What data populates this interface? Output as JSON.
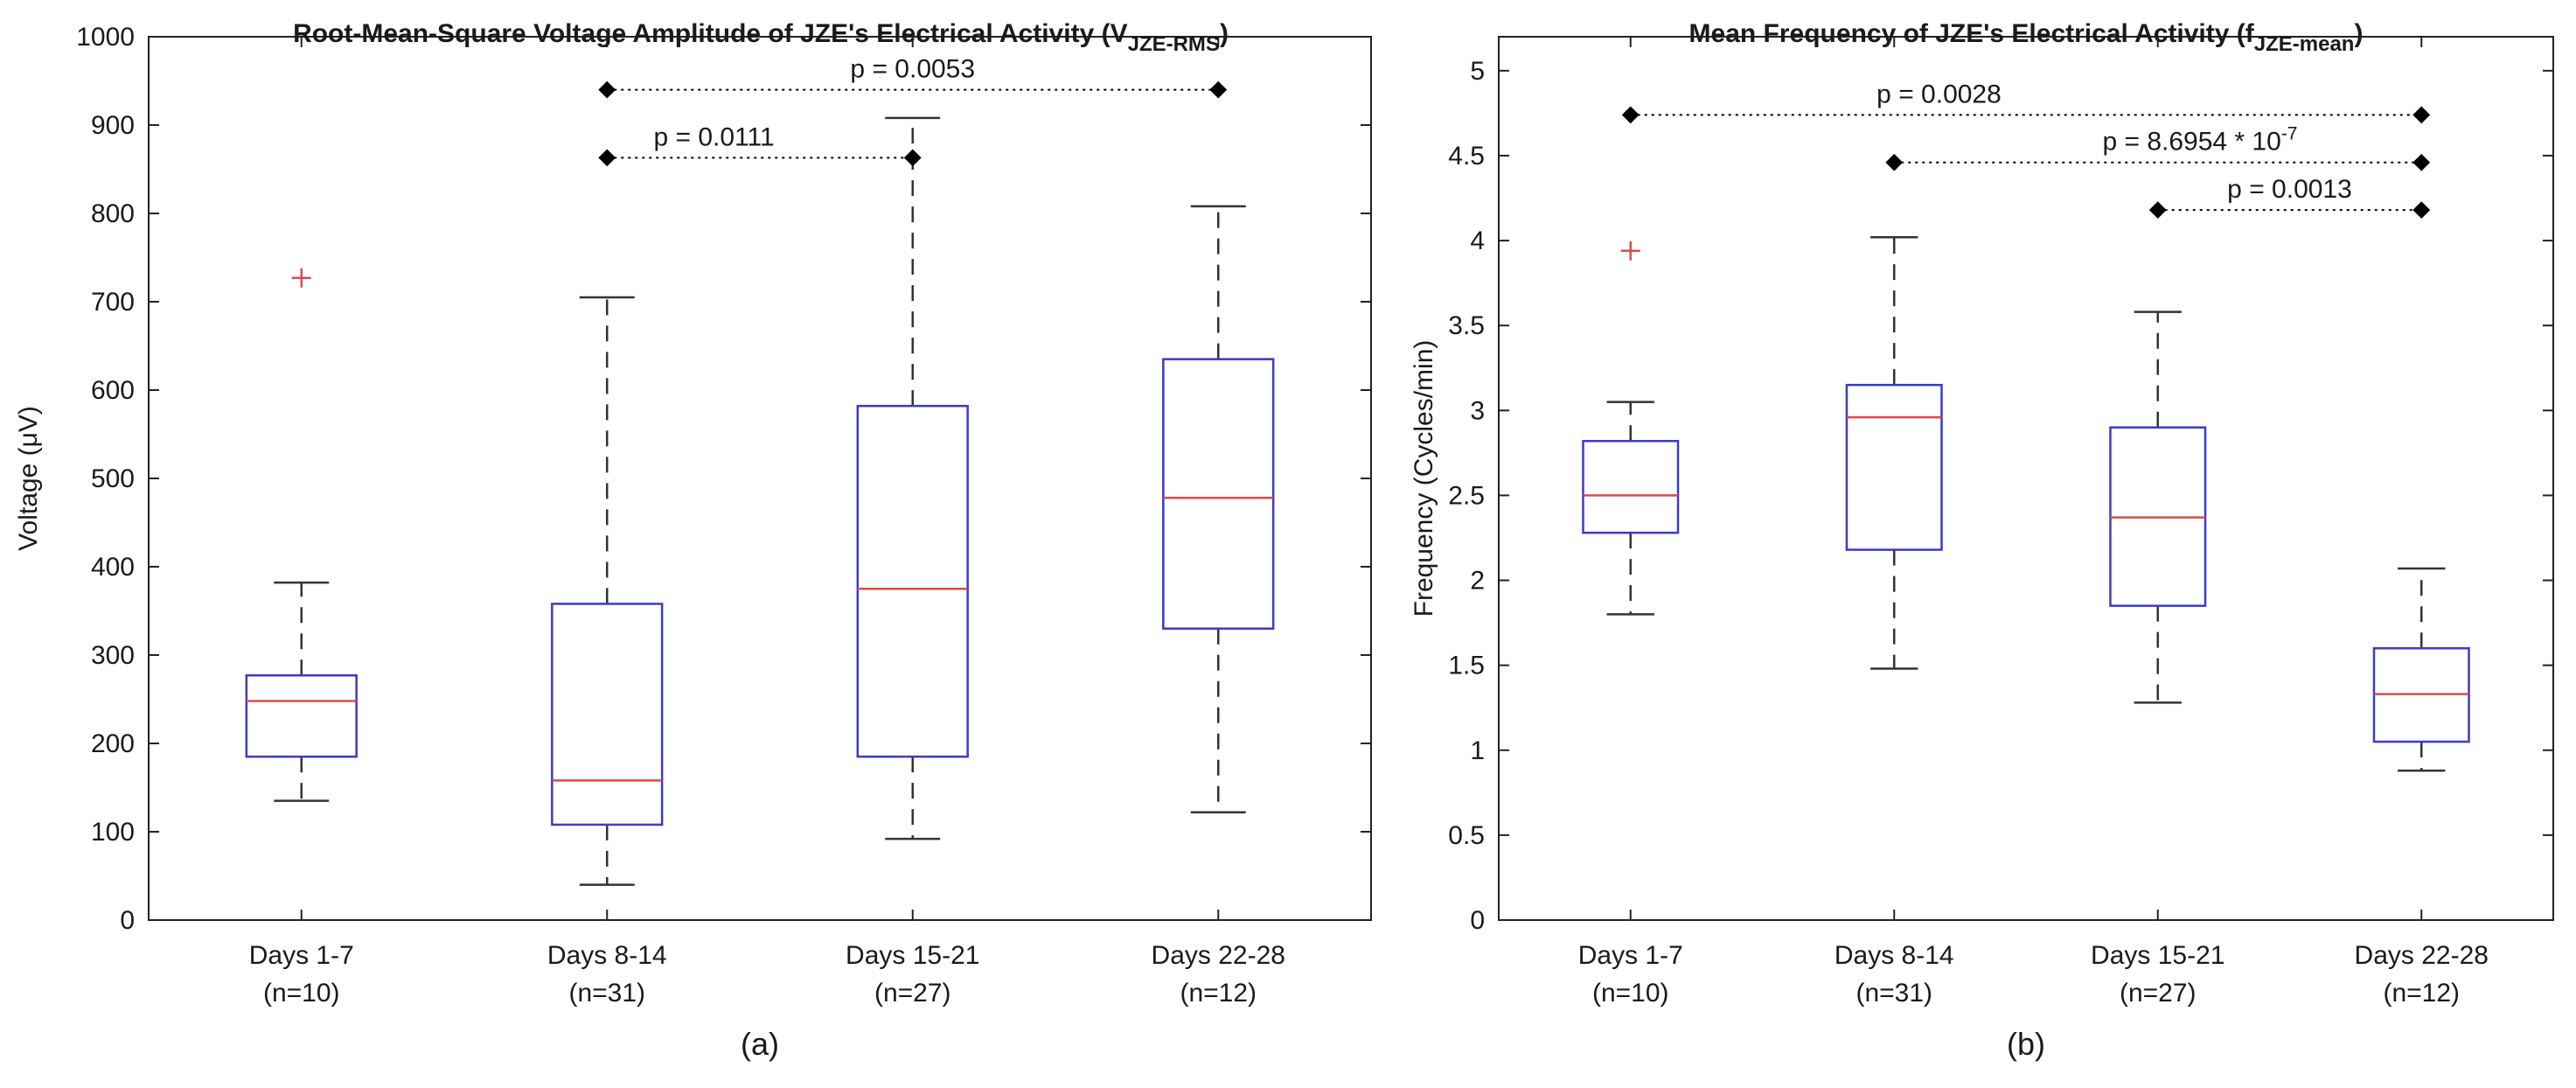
{
  "chart_data": [
    {
      "id": "a",
      "type": "box",
      "title": "Root-Mean-Square Voltage Amplitude of JZE's Electrical Activity (V",
      "title_subscript": "JZE-RMS",
      "title_close": ")",
      "ylabel": "Voltage (μV)",
      "panel_label": "(a)",
      "ylim": [
        0,
        1000
      ],
      "yticks": [
        0,
        100,
        200,
        300,
        400,
        500,
        600,
        700,
        800,
        900,
        1000
      ],
      "ytick_labels": [
        "0",
        "100",
        "200",
        "300",
        "400",
        "500",
        "600",
        "700",
        "800",
        "900",
        "1000"
      ],
      "categories": [
        "Days 1-7",
        "Days 8-14",
        "Days 15-21",
        "Days 22-28"
      ],
      "counts": [
        "(n=10)",
        "(n=31)",
        "(n=27)",
        "(n=12)"
      ],
      "boxes": [
        {
          "whisker_low": 135,
          "q1": 185,
          "median": 248,
          "q3": 277,
          "whisker_high": 382,
          "outliers": [
            727
          ]
        },
        {
          "whisker_low": 40,
          "q1": 108,
          "median": 158,
          "q3": 358,
          "whisker_high": 705,
          "outliers": []
        },
        {
          "whisker_low": 92,
          "q1": 185,
          "median": 375,
          "q3": 582,
          "whisker_high": 908,
          "outliers": []
        },
        {
          "whisker_low": 122,
          "q1": 330,
          "median": 478,
          "q3": 635,
          "whisker_high": 808,
          "outliers": []
        }
      ],
      "significance": [
        {
          "from": 1,
          "to": 3,
          "y": 940,
          "label": "p = 0.0053",
          "label_x_frac": 0.5
        },
        {
          "from": 1,
          "to": 2,
          "y": 863,
          "label": "p = 0.0111",
          "label_x_frac": 0.35
        }
      ]
    },
    {
      "id": "b",
      "type": "box",
      "title": "Mean Frequency of JZE's Electrical Activity (f",
      "title_subscript": "JZE-mean",
      "title_close": ")",
      "ylabel": "Frequency (Cycles/min)",
      "panel_label": "(b)",
      "ylim": [
        0,
        5.2
      ],
      "yticks": [
        0,
        0.5,
        1,
        1.5,
        2,
        2.5,
        3,
        3.5,
        4,
        4.5,
        5
      ],
      "ytick_labels": [
        "0",
        "0.5",
        "1",
        "1.5",
        "2",
        "2.5",
        "3",
        "3.5",
        "4",
        "4.5",
        "5"
      ],
      "categories": [
        "Days 1-7",
        "Days 8-14",
        "Days 15-21",
        "Days 22-28"
      ],
      "counts": [
        "(n=10)",
        "(n=31)",
        "(n=27)",
        "(n=12)"
      ],
      "boxes": [
        {
          "whisker_low": 1.8,
          "q1": 2.28,
          "median": 2.5,
          "q3": 2.82,
          "whisker_high": 3.05,
          "outliers": [
            3.94
          ]
        },
        {
          "whisker_low": 1.48,
          "q1": 2.18,
          "median": 2.96,
          "q3": 3.15,
          "whisker_high": 4.02,
          "outliers": []
        },
        {
          "whisker_low": 1.28,
          "q1": 1.85,
          "median": 2.37,
          "q3": 2.9,
          "whisker_high": 3.58,
          "outliers": []
        },
        {
          "whisker_low": 0.88,
          "q1": 1.05,
          "median": 1.33,
          "q3": 1.6,
          "whisker_high": 2.07,
          "outliers": []
        }
      ],
      "significance": [
        {
          "from": 0,
          "to": 3,
          "y": 4.74,
          "label": "p = 0.0028",
          "label_x_frac": 0.39
        },
        {
          "from": 1,
          "to": 3,
          "y": 4.46,
          "label": "p = 8.6954 * 10",
          "label_sup": "-7",
          "label_x_frac": 0.58
        },
        {
          "from": 2,
          "to": 3,
          "y": 4.18,
          "label": "p = 0.0013",
          "label_x_frac": 0.5
        }
      ]
    }
  ],
  "colors": {
    "box": "#3b3bc4",
    "median": "#d94c4c",
    "outlier": "#d94c4c",
    "whisker": "#333333",
    "axis": "#222222",
    "significance": "#000000"
  }
}
